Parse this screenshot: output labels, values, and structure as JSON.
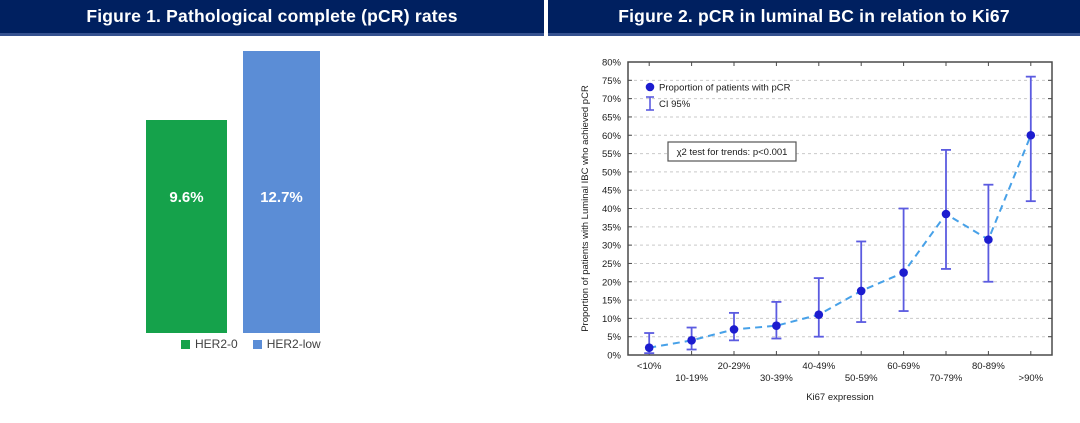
{
  "theme": {
    "banner_bg": "#002060",
    "banner_border": "#35518f",
    "green": "#15a24b",
    "blue_bar": "#5b8dd6",
    "marker_blue": "#1c1ccf",
    "error_blue": "#5b5be0",
    "dash_line_blue": "#47a1e8",
    "grid_gray": "#c9c9c9",
    "frame_gray": "#4a4a4a"
  },
  "chart_data": [
    {
      "type": "bar",
      "title": "Figure 1. Pathological complete (pCR) rates",
      "categories": [
        "HER2-0",
        "HER2-low"
      ],
      "values": [
        9.6,
        12.7
      ],
      "data_labels": [
        "9.6%",
        "12.7%"
      ],
      "colors": [
        "#15a24b",
        "#5b8dd6"
      ],
      "ylim": [
        0,
        13.5
      ],
      "grid": false,
      "legend_position": "bottom"
    },
    {
      "type": "line",
      "title": "Figure 2. pCR in luminal BC in relation to Ki67",
      "categories": [
        "<10%",
        "10-19%",
        "20-29%",
        "30-39%",
        "40-49%",
        "50-59%",
        "60-69%",
        "70-79%",
        "80-89%",
        ">90%"
      ],
      "series": [
        {
          "name": "Proportion of patients with pCR",
          "values": [
            2,
            4,
            7,
            8,
            11,
            17.5,
            22.5,
            38.5,
            31.5,
            60
          ],
          "ci_low": [
            0.5,
            1.5,
            4,
            4.5,
            5,
            9,
            12,
            23.5,
            20,
            42
          ],
          "ci_high": [
            6,
            7.5,
            11.5,
            14.5,
            21,
            31,
            40,
            56,
            46.5,
            76
          ]
        }
      ],
      "legend": [
        "Proportion of patients with pCR",
        "CI 95%"
      ],
      "legend_position": "top-left-inside",
      "annotation": "χ2 test for trends: p<0.001",
      "xlabel": "Ki67 expression",
      "ylabel": "Proportion of patients with Luminal IBC who achieved pCR",
      "ylim": [
        0,
        80
      ],
      "ytick_step": 5,
      "ytick_suffix": "%",
      "grid": true,
      "line_style": "dashed",
      "marker": "circle"
    }
  ]
}
